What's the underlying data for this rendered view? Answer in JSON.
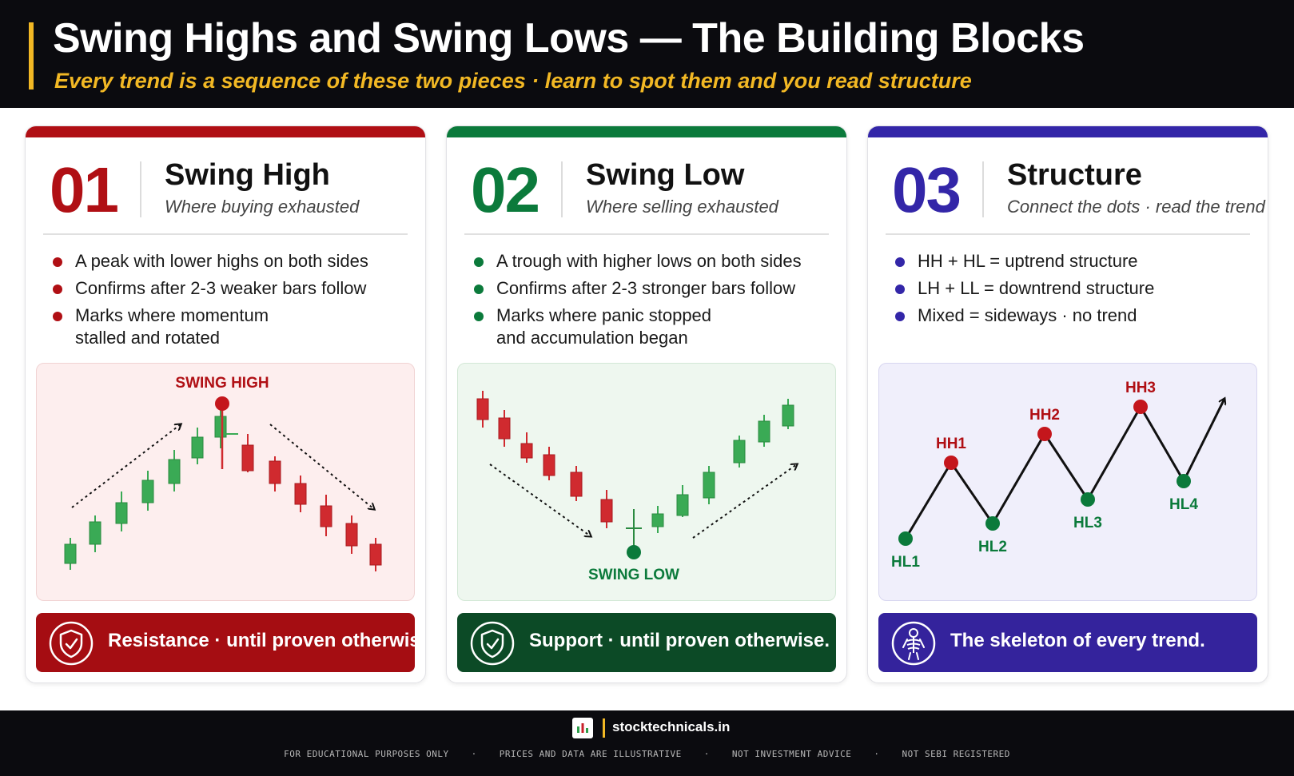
{
  "header": {
    "title": "Swing Highs and Swing Lows — The Building Blocks",
    "subtitle": "Every trend is a sequence of these two pieces · learn to spot them and you read structure"
  },
  "cards": [
    {
      "number": "01",
      "title": "Swing High",
      "tagline": "Where buying exhausted",
      "color": "#b00f14",
      "bullets": [
        "A peak with lower highs on both sides",
        "Confirms after 2-3 weaker bars follow",
        "Marks where momentum stalled and rotated"
      ],
      "diagram_label": "SWING HIGH",
      "banner": "Resistance · until proven otherwise.",
      "banner_icon": "shield-check-icon"
    },
    {
      "number": "02",
      "title": "Swing Low",
      "tagline": "Where selling exhausted",
      "color": "#0b7a3b",
      "bullets": [
        "A trough with higher lows on both sides",
        "Confirms after 2-3 stronger bars follow",
        "Marks where panic stopped and accumulation began"
      ],
      "diagram_label": "SWING LOW",
      "banner": "Support · until proven otherwise.",
      "banner_icon": "shield-check-icon"
    },
    {
      "number": "03",
      "title": "Structure",
      "tagline": "Connect the dots · read the trend",
      "color": "#3326a8",
      "bullets": [
        "HH + HL = uptrend structure",
        "LH + LL = downtrend structure",
        "Mixed = sideways · no trend"
      ],
      "points": [
        "HL1",
        "HH1",
        "HL2",
        "HH2",
        "HL3",
        "HH3",
        "HL4"
      ],
      "banner": "The skeleton of every trend.",
      "banner_icon": "skeleton-icon"
    }
  ],
  "footer": {
    "site": "stocktechnicals.in",
    "disclaimers": [
      "FOR EDUCATIONAL PURPOSES ONLY",
      "PRICES AND DATA ARE ILLUSTRATIVE",
      "NOT INVESTMENT ADVICE",
      "NOT SEBI REGISTERED"
    ]
  }
}
